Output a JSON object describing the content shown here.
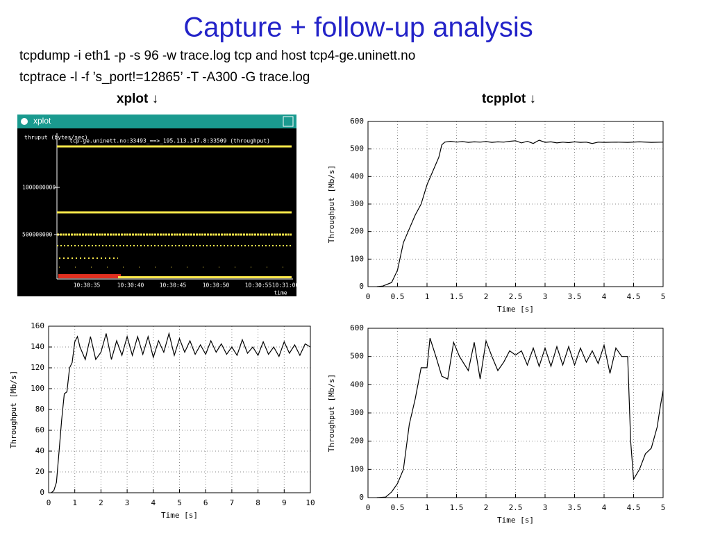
{
  "slide": {
    "title": "Capture + follow-up analysis",
    "commands": [
      "tcpdump -i eth1 -p -s 96 -w trace.log tcp and host tcp4-ge.uninett.no",
      "tcptrace -l -f ’s_port!=12865’ -T -A300 -G trace.log"
    ],
    "left_heading": "xplot ↓",
    "right_heading": "tcpplot ↓"
  },
  "xplot": {
    "window_title": "xplot",
    "y_axis_label": "thruput (bytes/sec)",
    "series_label": "tcp-ge.uninett.no:33493_==>_195.113.147.8:33509 (throughput)",
    "y_tick_labels": [
      "1000000000",
      "500000000"
    ],
    "x_tick_labels": [
      "10:30:35",
      "10:30:40",
      "10:30:45",
      "10:30:50",
      "10:30:55",
      "10:31:00"
    ],
    "x_axis_label": "time"
  },
  "chart_data": [
    {
      "type": "line",
      "xlabel": "Time [s]",
      "ylabel": "Throughput [Mb/s]",
      "color": "#000000",
      "grid": true,
      "xlim": [
        0,
        5
      ],
      "xticks": [
        0,
        0.5,
        1,
        1.5,
        2,
        2.5,
        3,
        3.5,
        4,
        4.5,
        5
      ],
      "ylim": [
        0,
        600
      ],
      "yticks": [
        0,
        100,
        200,
        300,
        400,
        500,
        600
      ],
      "x": [
        0.15,
        0.25,
        0.4,
        0.5,
        0.6,
        0.7,
        0.8,
        0.9,
        1.0,
        1.1,
        1.2,
        1.25,
        1.3,
        1.4,
        1.5,
        1.6,
        1.7,
        1.8,
        1.9,
        2.0,
        2.1,
        2.2,
        2.3,
        2.4,
        2.5,
        2.6,
        2.7,
        2.8,
        2.9,
        3.0,
        3.1,
        3.2,
        3.3,
        3.4,
        3.5,
        3.6,
        3.7,
        3.8,
        3.9,
        4.0,
        4.2,
        4.4,
        4.6,
        4.8,
        5.0
      ],
      "values": [
        0,
        2,
        15,
        60,
        160,
        210,
        260,
        300,
        370,
        420,
        470,
        515,
        525,
        528,
        525,
        527,
        524,
        526,
        525,
        527,
        524,
        526,
        525,
        528,
        530,
        522,
        528,
        520,
        532,
        524,
        526,
        522,
        525,
        523,
        526,
        524,
        525,
        520,
        525,
        524,
        525,
        524,
        526,
        524,
        525
      ]
    },
    {
      "type": "line",
      "xlabel": "Time [s]",
      "ylabel": "Throughput [Mb/s]",
      "color": "#000000",
      "grid": true,
      "xlim": [
        0,
        10
      ],
      "xticks": [
        0,
        1,
        2,
        3,
        4,
        5,
        6,
        7,
        8,
        9,
        10
      ],
      "ylim": [
        0,
        160
      ],
      "yticks": [
        0,
        20,
        40,
        60,
        80,
        100,
        120,
        140,
        160
      ],
      "x": [
        0.1,
        0.2,
        0.3,
        0.4,
        0.5,
        0.6,
        0.7,
        0.8,
        0.9,
        1.0,
        1.1,
        1.2,
        1.4,
        1.6,
        1.8,
        2.0,
        2.2,
        2.4,
        2.6,
        2.8,
        3.0,
        3.2,
        3.4,
        3.6,
        3.8,
        4.0,
        4.2,
        4.4,
        4.6,
        4.8,
        5.0,
        5.2,
        5.4,
        5.6,
        5.8,
        6.0,
        6.2,
        6.4,
        6.6,
        6.8,
        7.0,
        7.2,
        7.4,
        7.6,
        7.8,
        8.0,
        8.2,
        8.4,
        8.6,
        8.8,
        9.0,
        9.2,
        9.4,
        9.6,
        9.8,
        10
      ],
      "values": [
        0,
        2,
        10,
        40,
        70,
        95,
        97,
        120,
        125,
        145,
        150,
        140,
        128,
        150,
        128,
        135,
        153,
        128,
        146,
        132,
        150,
        132,
        150,
        133,
        150,
        130,
        146,
        135,
        153,
        132,
        148,
        135,
        146,
        133,
        142,
        133,
        146,
        135,
        143,
        133,
        140,
        132,
        147,
        134,
        140,
        132,
        145,
        133,
        140,
        131,
        145,
        134,
        142,
        132,
        143,
        140
      ]
    },
    {
      "type": "line",
      "xlabel": "Time [s]",
      "ylabel": "Throughput [Mb/s]",
      "color": "#000000",
      "grid": true,
      "xlim": [
        0,
        5
      ],
      "xticks": [
        0,
        0.5,
        1,
        1.5,
        2,
        2.5,
        3,
        3.5,
        4,
        4.5,
        5
      ],
      "ylim": [
        0,
        600
      ],
      "yticks": [
        0,
        100,
        200,
        300,
        400,
        500,
        600
      ],
      "x": [
        0.15,
        0.3,
        0.4,
        0.5,
        0.6,
        0.7,
        0.8,
        0.9,
        1.0,
        1.05,
        1.15,
        1.25,
        1.35,
        1.45,
        1.55,
        1.7,
        1.8,
        1.9,
        2.0,
        2.1,
        2.2,
        2.3,
        2.4,
        2.5,
        2.6,
        2.7,
        2.8,
        2.9,
        3.0,
        3.1,
        3.2,
        3.3,
        3.4,
        3.5,
        3.6,
        3.7,
        3.8,
        3.9,
        4.0,
        4.1,
        4.2,
        4.3,
        4.4,
        4.45,
        4.5,
        4.6,
        4.7,
        4.8,
        4.9,
        4.95,
        5.0
      ],
      "values": [
        0,
        2,
        20,
        50,
        100,
        260,
        350,
        460,
        460,
        565,
        500,
        430,
        420,
        550,
        500,
        450,
        550,
        420,
        555,
        500,
        450,
        480,
        520,
        505,
        520,
        470,
        530,
        465,
        530,
        465,
        535,
        470,
        535,
        470,
        530,
        480,
        520,
        475,
        540,
        440,
        530,
        500,
        500,
        200,
        65,
        100,
        155,
        175,
        250,
        320,
        380
      ]
    }
  ]
}
